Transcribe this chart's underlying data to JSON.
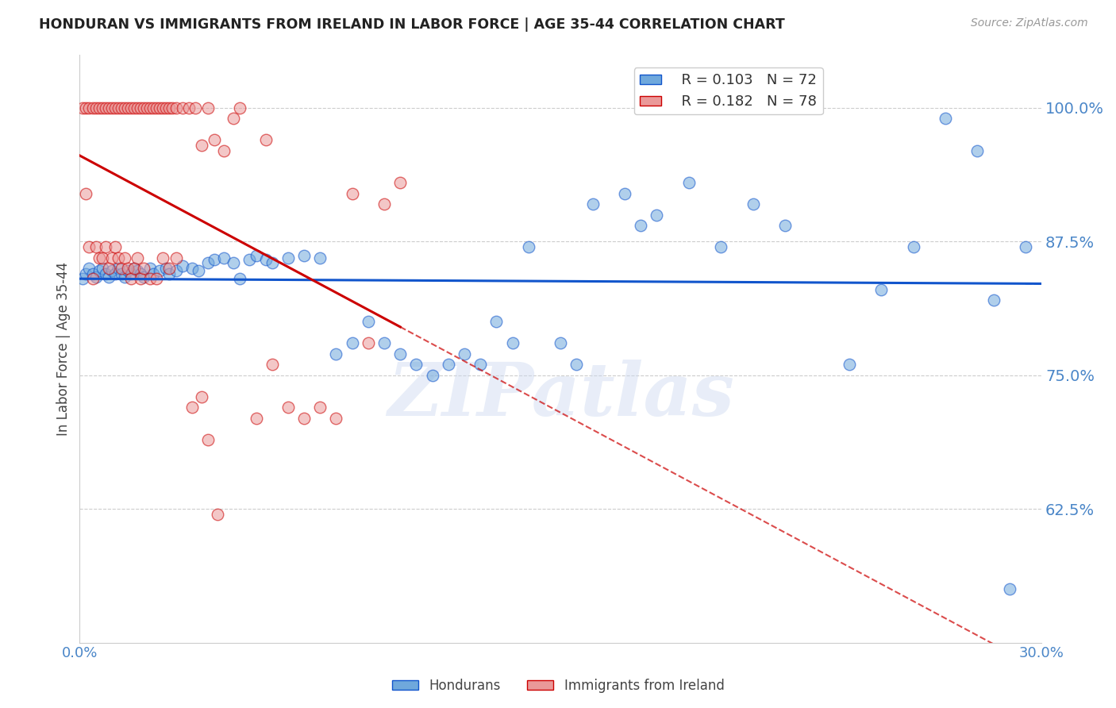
{
  "title": "HONDURAN VS IMMIGRANTS FROM IRELAND IN LABOR FORCE | AGE 35-44 CORRELATION CHART",
  "source": "Source: ZipAtlas.com",
  "ylabel": "In Labor Force | Age 35-44",
  "xlim": [
    0.0,
    0.3
  ],
  "ylim": [
    0.5,
    1.05
  ],
  "yticks": [
    0.625,
    0.75,
    0.875,
    1.0
  ],
  "ytick_labels": [
    "62.5%",
    "75.0%",
    "87.5%",
    "100.0%"
  ],
  "xticks": [
    0.0,
    0.05,
    0.1,
    0.15,
    0.2,
    0.25,
    0.3
  ],
  "xtick_labels": [
    "0.0%",
    "",
    "",
    "",
    "",
    "",
    "30.0%"
  ],
  "blue_R": 0.103,
  "blue_N": 72,
  "pink_R": 0.182,
  "pink_N": 78,
  "blue_color": "#6fa8dc",
  "pink_color": "#ea9999",
  "blue_line_color": "#1155cc",
  "pink_line_color": "#cc0000",
  "axis_color": "#4a86c8",
  "watermark": "ZIPatlas",
  "blue_scatter_x": [
    0.001,
    0.002,
    0.003,
    0.004,
    0.005,
    0.006,
    0.007,
    0.008,
    0.009,
    0.01,
    0.011,
    0.012,
    0.013,
    0.014,
    0.015,
    0.016,
    0.017,
    0.018,
    0.019,
    0.02,
    0.022,
    0.023,
    0.025,
    0.027,
    0.028,
    0.03,
    0.032,
    0.035,
    0.037,
    0.04,
    0.042,
    0.045,
    0.048,
    0.05,
    0.053,
    0.055,
    0.058,
    0.06,
    0.065,
    0.07,
    0.075,
    0.08,
    0.085,
    0.09,
    0.095,
    0.1,
    0.105,
    0.11,
    0.115,
    0.12,
    0.125,
    0.13,
    0.135,
    0.14,
    0.15,
    0.155,
    0.16,
    0.17,
    0.175,
    0.18,
    0.19,
    0.2,
    0.21,
    0.22,
    0.24,
    0.25,
    0.26,
    0.27,
    0.28,
    0.285,
    0.29,
    0.295
  ],
  "blue_scatter_y": [
    0.84,
    0.845,
    0.85,
    0.845,
    0.842,
    0.848,
    0.85,
    0.845,
    0.842,
    0.848,
    0.845,
    0.85,
    0.845,
    0.842,
    0.848,
    0.845,
    0.85,
    0.848,
    0.845,
    0.842,
    0.85,
    0.845,
    0.848,
    0.85,
    0.845,
    0.848,
    0.852,
    0.85,
    0.848,
    0.855,
    0.858,
    0.86,
    0.855,
    0.84,
    0.858,
    0.862,
    0.858,
    0.855,
    0.86,
    0.862,
    0.86,
    0.77,
    0.78,
    0.8,
    0.78,
    0.77,
    0.76,
    0.75,
    0.76,
    0.77,
    0.76,
    0.8,
    0.78,
    0.87,
    0.78,
    0.76,
    0.91,
    0.92,
    0.89,
    0.9,
    0.93,
    0.87,
    0.91,
    0.89,
    0.76,
    0.83,
    0.87,
    0.99,
    0.96,
    0.82,
    0.55,
    0.87
  ],
  "pink_scatter_x": [
    0.001,
    0.002,
    0.003,
    0.004,
    0.005,
    0.006,
    0.007,
    0.008,
    0.009,
    0.01,
    0.011,
    0.012,
    0.013,
    0.014,
    0.015,
    0.016,
    0.017,
    0.018,
    0.019,
    0.02,
    0.021,
    0.022,
    0.023,
    0.024,
    0.025,
    0.026,
    0.027,
    0.028,
    0.029,
    0.03,
    0.032,
    0.034,
    0.036,
    0.038,
    0.04,
    0.042,
    0.045,
    0.048,
    0.05,
    0.055,
    0.058,
    0.06,
    0.065,
    0.07,
    0.075,
    0.08,
    0.085,
    0.09,
    0.095,
    0.1,
    0.002,
    0.003,
    0.004,
    0.005,
    0.006,
    0.007,
    0.008,
    0.009,
    0.01,
    0.011,
    0.012,
    0.013,
    0.014,
    0.015,
    0.016,
    0.017,
    0.018,
    0.019,
    0.02,
    0.022,
    0.024,
    0.026,
    0.028,
    0.03,
    0.035,
    0.038,
    0.04,
    0.043
  ],
  "pink_scatter_y": [
    1.0,
    1.0,
    1.0,
    1.0,
    1.0,
    1.0,
    1.0,
    1.0,
    1.0,
    1.0,
    1.0,
    1.0,
    1.0,
    1.0,
    1.0,
    1.0,
    1.0,
    1.0,
    1.0,
    1.0,
    1.0,
    1.0,
    1.0,
    1.0,
    1.0,
    1.0,
    1.0,
    1.0,
    1.0,
    1.0,
    1.0,
    1.0,
    1.0,
    0.965,
    1.0,
    0.97,
    0.96,
    0.99,
    1.0,
    0.71,
    0.97,
    0.76,
    0.72,
    0.71,
    0.72,
    0.71,
    0.92,
    0.78,
    0.91,
    0.93,
    0.92,
    0.87,
    0.84,
    0.87,
    0.86,
    0.86,
    0.87,
    0.85,
    0.86,
    0.87,
    0.86,
    0.85,
    0.86,
    0.85,
    0.84,
    0.85,
    0.86,
    0.84,
    0.85,
    0.84,
    0.84,
    0.86,
    0.85,
    0.86,
    0.72,
    0.73,
    0.69,
    0.62
  ]
}
